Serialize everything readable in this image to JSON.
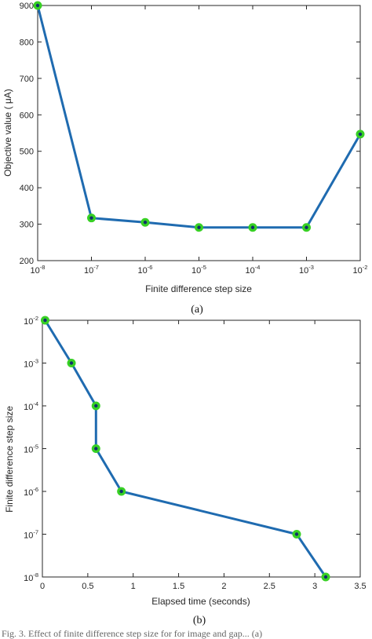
{
  "colors": {
    "line": "#1f6bb0",
    "marker_fill": "#37d024",
    "marker_center": "#10306b",
    "axis": "#262626",
    "background": "#ffffff"
  },
  "chart_data": [
    {
      "type": "line",
      "caption": "(a)",
      "xlabel": "Finite difference step size",
      "ylabel": "Objective value (    μA)",
      "xscale": "log",
      "xlim": [
        1e-08,
        0.01
      ],
      "ylim": [
        200,
        900
      ],
      "grid": false,
      "x_ticks": [
        {
          "base": "10",
          "exp": "-8",
          "value": 1e-08
        },
        {
          "base": "10",
          "exp": "-7",
          "value": 1e-07
        },
        {
          "base": "10",
          "exp": "-6",
          "value": 1e-06
        },
        {
          "base": "10",
          "exp": "-5",
          "value": 1e-05
        },
        {
          "base": "10",
          "exp": "-4",
          "value": 0.0001
        },
        {
          "base": "10",
          "exp": "-3",
          "value": 0.001
        },
        {
          "base": "10",
          "exp": "-2",
          "value": 0.01
        }
      ],
      "y_ticks": [
        200,
        300,
        400,
        500,
        600,
        700,
        800,
        900
      ],
      "series": [
        {
          "x": [
            1e-08,
            1e-07,
            1e-06,
            1e-05,
            0.0001,
            0.001,
            0.01
          ],
          "y": [
            900,
            317,
            305,
            291,
            291,
            291,
            547
          ]
        }
      ]
    },
    {
      "type": "line",
      "caption": "(b)",
      "xlabel": "Elapsed time (seconds)",
      "ylabel": "Finite difference step size",
      "yscale": "log",
      "xlim": [
        0,
        3.5
      ],
      "ylim": [
        1e-08,
        0.01
      ],
      "grid": false,
      "x_ticks": [
        "0",
        "0.5",
        "1",
        "1.5",
        "2",
        "2.5",
        "3",
        "3.5"
      ],
      "y_ticks": [
        {
          "base": "10",
          "exp": "-8",
          "value": 1e-08
        },
        {
          "base": "10",
          "exp": "-7",
          "value": 1e-07
        },
        {
          "base": "10",
          "exp": "-6",
          "value": 1e-06
        },
        {
          "base": "10",
          "exp": "-5",
          "value": 1e-05
        },
        {
          "base": "10",
          "exp": "-4",
          "value": 0.0001
        },
        {
          "base": "10",
          "exp": "-3",
          "value": 0.001
        },
        {
          "base": "10",
          "exp": "-2",
          "value": 0.01
        }
      ],
      "series": [
        {
          "x": [
            0.03,
            0.32,
            0.59,
            0.59,
            0.87,
            2.8,
            3.12
          ],
          "y": [
            0.01,
            0.001,
            0.0001,
            1e-05,
            1e-06,
            1e-07,
            1e-08
          ]
        }
      ]
    }
  ],
  "footer_text": "Fig. 3. Effect of finite difference step size for for image and gap... (a)"
}
